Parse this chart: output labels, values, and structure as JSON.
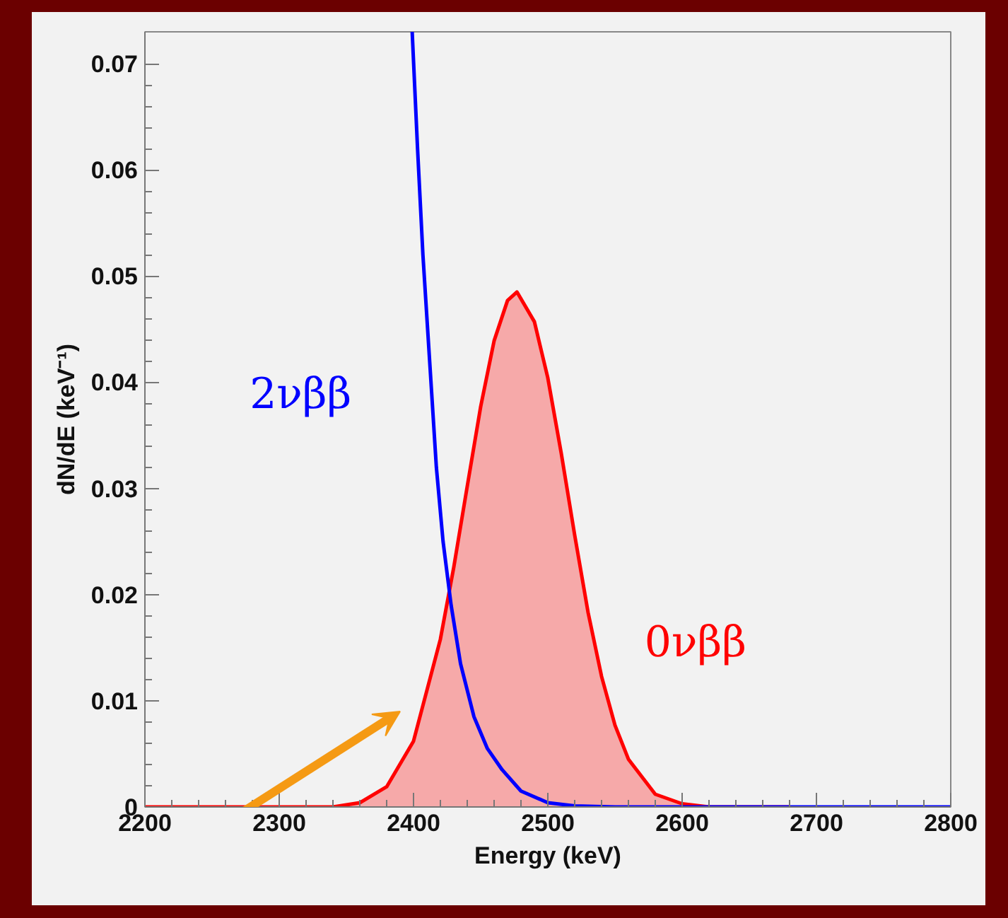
{
  "chart_data": {
    "type": "line",
    "xlabel": "Energy (keV)",
    "ylabel": "dN/dE (keV⁻¹)",
    "xlim": [
      2200,
      2800
    ],
    "ylim": [
      0,
      0.073
    ],
    "xticks": [
      2200,
      2300,
      2400,
      2500,
      2600,
      2700,
      2800
    ],
    "yticks": [
      0,
      0.01,
      0.02,
      0.03,
      0.04,
      0.05,
      0.06,
      0.07
    ],
    "grid": false,
    "marker": "none",
    "line_style": "solid",
    "series": [
      {
        "name": "0νββ",
        "type": "area",
        "color": "#ff0000",
        "x": [
          2200,
          2340,
          2360,
          2380,
          2400,
          2420,
          2430,
          2440,
          2450,
          2460,
          2470,
          2477,
          2490,
          2500,
          2510,
          2520,
          2530,
          2540,
          2550,
          2560,
          2580,
          2600,
          2620,
          2680
        ],
        "values": [
          0,
          0,
          0.0004,
          0.0019,
          0.0062,
          0.0158,
          0.0226,
          0.0302,
          0.0377,
          0.0439,
          0.0477,
          0.0485,
          0.0457,
          0.0404,
          0.0333,
          0.0256,
          0.0183,
          0.0123,
          0.0077,
          0.0045,
          0.0012,
          0.0003,
          0,
          0
        ]
      },
      {
        "name": "2νββ",
        "color": "#0000ff",
        "x": [
          2399,
          2403,
          2407,
          2412,
          2417,
          2422,
          2428,
          2435,
          2445,
          2455,
          2466,
          2480,
          2500,
          2520,
          2550,
          2800
        ],
        "values": [
          0.073,
          0.062,
          0.052,
          0.042,
          0.032,
          0.025,
          0.019,
          0.0135,
          0.0085,
          0.0055,
          0.0035,
          0.0015,
          0.0004,
          0.0001,
          0,
          0
        ]
      }
    ]
  }
}
